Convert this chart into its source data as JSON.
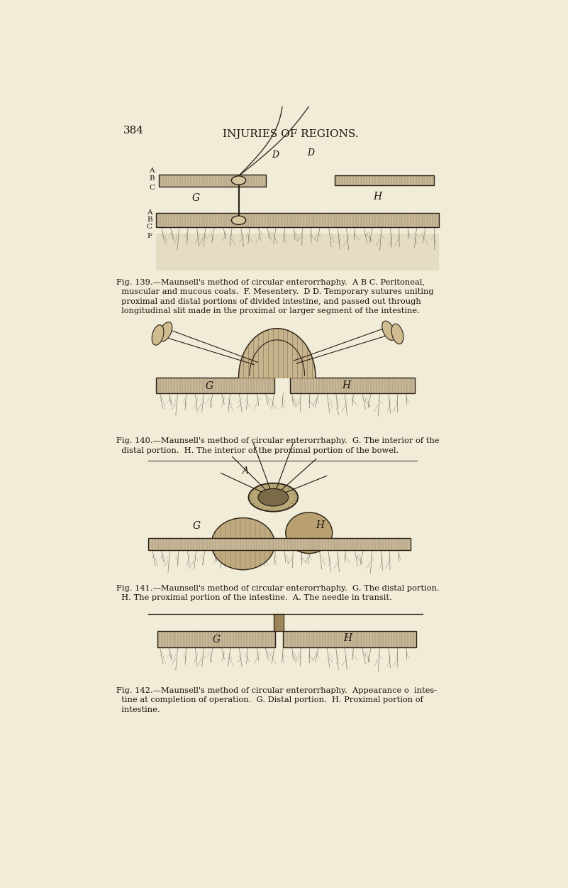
{
  "bg_color": "#f0ecd8",
  "page_color": "#ede8d2",
  "title": "INJURIES OF REGIONS.",
  "page_number": "384",
  "fig139_caption": "Fig. 139.—Maunsell's method of circular enterorrhaphy.  A B C. Peritoneal,\n  muscular and mucous coats.  F. Mesentery.  D D. Temporary sutures uniting\n  proximal and distal portions of divided intestine, and passed out through\n  longitudinal slit made in the proximal or larger segment of the intestine.",
  "fig140_caption": "Fig. 140.—Maunsell's method of circular enterorrhaphy.  G. The interior of the\n  distal portion.  H. The interior of the proximal portion of the bowel.",
  "fig141_caption": "Fig. 141.—Maunsell's method of circular enterorrhaphy.  G. The distal portion.\n  H. The proximal portion of the intestine.  A. The needle in transit.",
  "fig142_caption": "Fig. 142.—Maunsell's method of circular enterorrhaphy.  Appearance o  intes-\n  tine at completion of operation.  G. Distal portion.  H. Proximal portion of\n  intestine.",
  "line_color": "#2a2015",
  "text_color": "#1a1008",
  "hatch_color": "#4a3820"
}
